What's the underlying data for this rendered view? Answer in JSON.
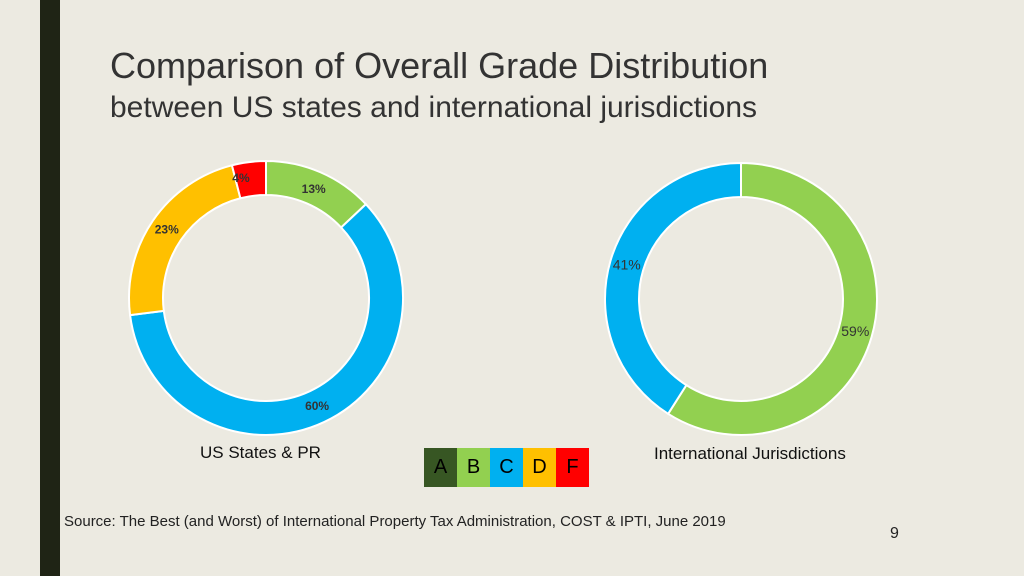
{
  "header": {
    "title": "Comparison of Overall Grade Distribution",
    "subtitle": "between US states and international jurisdictions"
  },
  "chart_data": [
    {
      "type": "pie",
      "title": "US States & PR",
      "categories": [
        "A",
        "B",
        "C",
        "D",
        "F"
      ],
      "values": [
        0,
        13,
        60,
        23,
        4
      ],
      "labels": [
        "",
        "13%",
        "60%",
        "23%",
        "4%"
      ],
      "colors": [
        "#375623",
        "#92D050",
        "#00B0F0",
        "#FFC000",
        "#FF0000"
      ]
    },
    {
      "type": "pie",
      "title": "International Jurisdictions",
      "categories": [
        "A",
        "B",
        "C",
        "D",
        "F"
      ],
      "values": [
        0,
        59,
        41,
        0,
        0
      ],
      "labels": [
        "",
        "59%",
        "41%",
        "",
        ""
      ],
      "colors": [
        "#375623",
        "#92D050",
        "#00B0F0",
        "#FFC000",
        "#FF0000"
      ]
    }
  ],
  "legend": [
    {
      "label": "A",
      "color": "#375623"
    },
    {
      "label": "B",
      "color": "#92D050"
    },
    {
      "label": "C",
      "color": "#00B0F0"
    },
    {
      "label": "D",
      "color": "#FFC000"
    },
    {
      "label": "F",
      "color": "#FF0000"
    }
  ],
  "source": "Source: The Best (and Worst) of International Property Tax Administration, COST & IPTI, June 2019",
  "page_number": "9"
}
